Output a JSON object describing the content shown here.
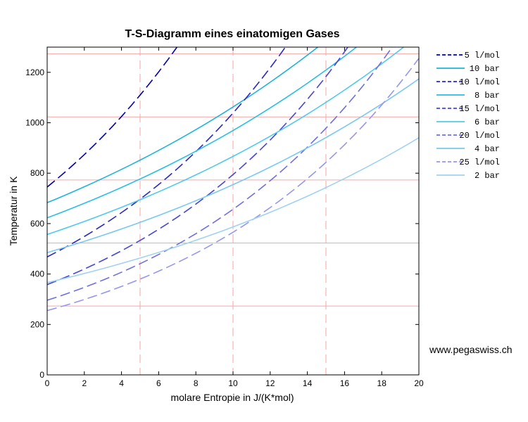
{
  "chart_data": {
    "type": "line",
    "title": "T-S-Diagramm eines einatomigen Gases",
    "xlabel": "molare Entropie in J/(K*mol)",
    "ylabel": "Temperatur in K",
    "xlim": [
      0,
      20
    ],
    "ylim": [
      0,
      1300
    ],
    "x_ticks": [
      0,
      2,
      4,
      6,
      8,
      10,
      12,
      14,
      16,
      18,
      20
    ],
    "y_ticks": [
      0,
      200,
      400,
      600,
      800,
      1000,
      1200
    ],
    "grid": false,
    "legend_position": "outside-right",
    "x_step": 0.5,
    "reference_lines": {
      "horizontal_T": [
        273,
        523,
        773,
        1023,
        1273
      ],
      "vertical_S": [
        5,
        10,
        15
      ],
      "color": "#f4a6a6"
    },
    "series": [
      {
        "name": "5 l/mol",
        "style": "dashed",
        "color": "#0000b4",
        "T0": 745,
        "growth": 0.0797
      },
      {
        "name": "10 bar",
        "style": "solid",
        "color": "#1eb4dc",
        "T0": 683,
        "growth": 0.0442
      },
      {
        "name": "10 l/mol",
        "style": "dashed",
        "color": "#2828c8",
        "T0": 468,
        "growth": 0.0797
      },
      {
        "name": "8 bar",
        "style": "solid",
        "color": "#28bee6",
        "T0": 623,
        "growth": 0.0442
      },
      {
        "name": "15 l/mol",
        "style": "dashed",
        "color": "#4646dc",
        "T0": 358,
        "growth": 0.0797
      },
      {
        "name": "6 bar",
        "style": "solid",
        "color": "#50c8f0",
        "T0": 557,
        "growth": 0.0442
      },
      {
        "name": "20 l/mol",
        "style": "dashed",
        "color": "#6e6ee6",
        "T0": 296,
        "growth": 0.0797
      },
      {
        "name": "4 bar",
        "style": "solid",
        "color": "#78c8f0",
        "T0": 485,
        "growth": 0.0442
      },
      {
        "name": "25 l/mol",
        "style": "dashed",
        "color": "#9696f0",
        "T0": 255,
        "growth": 0.0797
      },
      {
        "name": "2 bar",
        "style": "solid",
        "color": "#a0d2f0",
        "T0": 366,
        "growth": 0.0472
      }
    ]
  },
  "credit": "www.pegaswiss.ch"
}
